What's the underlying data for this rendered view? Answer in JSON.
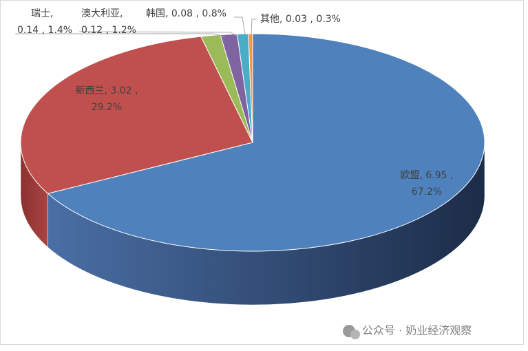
{
  "chart_data": {
    "type": "pie3d",
    "values": [
      6.95,
      3.02,
      0.14,
      0.12,
      0.08,
      0.03
    ],
    "colors": [
      "#4f81bd",
      "#c0504d",
      "#9bbb59",
      "#8064a2",
      "#4bacc6",
      "#f79646"
    ],
    "data_labels": [
      [
        "欧盟, 6.95 ,",
        "67.2%"
      ],
      [
        "新西兰, 3.02 ,",
        "29.2%"
      ],
      [
        "瑞士,",
        "0.14 , 1.4%"
      ],
      [
        "澳大利亚,",
        "0.12 , 1.2%"
      ],
      [
        "韩国, 0.08 , 0.8%"
      ],
      [
        "其他, 0.03 , 0.3%"
      ]
    ]
  },
  "watermark": "公众号 · 奶业经济观察"
}
